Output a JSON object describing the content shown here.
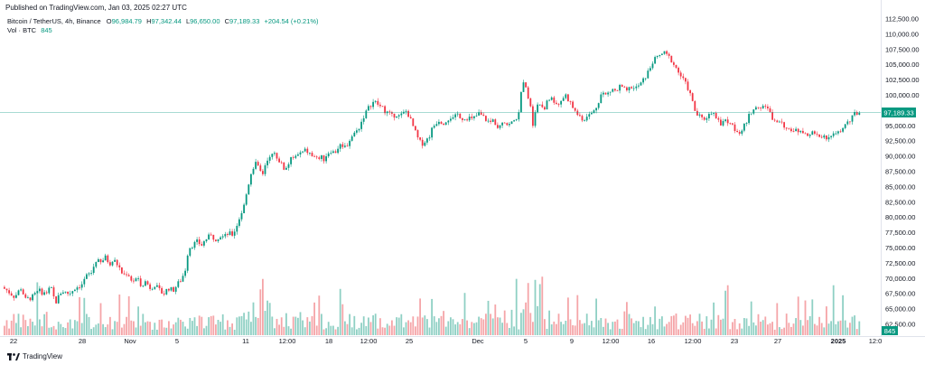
{
  "header": {
    "published": "Published on TradingView.com, Jan 03, 2025 02:27 UTC"
  },
  "legend": {
    "symbol": "Bitcoin / TetherUS, 4h, Binance",
    "o_label": "O",
    "o_value": "96,984.79",
    "h_label": "H",
    "h_value": "97,342.44",
    "l_label": "L",
    "l_value": "96,650.00",
    "c_label": "C",
    "c_value": "97,189.33",
    "change": "+204.54 (+0.21%)",
    "vol_label": "Vol · BTC",
    "vol_value": "845"
  },
  "footer": {
    "brand": "TradingView"
  },
  "colors": {
    "up": "#089981",
    "down": "#f23645",
    "up_vol": "#8fd0c4",
    "down_vol": "#f5a5a8",
    "price_line": "#089981"
  },
  "chart_data": {
    "type": "candlestick",
    "title": "Bitcoin / TetherUS, 4h, Binance",
    "price_axis": {
      "range": [
        62500,
        112500
      ],
      "ticks": [
        112500,
        110000,
        107500,
        105000,
        102500,
        100000,
        95000,
        92500,
        90000,
        87500,
        85000,
        82500,
        80000,
        77500,
        75000,
        72500,
        70000,
        67500,
        65000,
        62500
      ],
      "tick_labels": [
        "112,500.00",
        "110,000.00",
        "107,500.00",
        "105,000.00",
        "102,500.00",
        "100,000.00",
        "95,000.00",
        "92,500.00",
        "90,000.00",
        "87,500.00",
        "85,000.00",
        "82,500.00",
        "80,000.00",
        "77,500.00",
        "75,000.00",
        "72,500.00",
        "70,000.00",
        "67,500.00",
        "65,000.00",
        "62,500.00"
      ],
      "last_price": 97189.33,
      "last_price_label": "97,189.33",
      "volume_label": "845"
    },
    "time_axis": {
      "labels": [
        "22",
        "28",
        "Nov",
        "5",
        "11",
        "12:00",
        "18",
        "12:00",
        "25",
        "Dec",
        "5",
        "9",
        "12:00",
        "16",
        "12:00",
        "23",
        "27",
        "2025",
        "12:0"
      ]
    },
    "price_path": [
      [
        0,
        69000
      ],
      [
        10,
        68000
      ],
      [
        18,
        67000
      ],
      [
        25,
        68500
      ],
      [
        30,
        66500
      ],
      [
        38,
        67000
      ],
      [
        45,
        68000
      ],
      [
        52,
        67500
      ],
      [
        58,
        68500
      ],
      [
        63,
        66000
      ],
      [
        70,
        68000
      ],
      [
        78,
        67500
      ],
      [
        85,
        68500
      ],
      [
        92,
        69000
      ],
      [
        98,
        70500
      ],
      [
        103,
        71000
      ],
      [
        108,
        73000
      ],
      [
        113,
        72500
      ],
      [
        118,
        73500
      ],
      [
        123,
        72500
      ],
      [
        128,
        73000
      ],
      [
        133,
        72000
      ],
      [
        138,
        70500
      ],
      [
        143,
        71000
      ],
      [
        148,
        69500
      ],
      [
        153,
        70000
      ],
      [
        158,
        69000
      ],
      [
        163,
        69500
      ],
      [
        168,
        68500
      ],
      [
        173,
        69000
      ],
      [
        178,
        68000
      ],
      [
        183,
        67500
      ],
      [
        188,
        68500
      ],
      [
        193,
        68000
      ],
      [
        198,
        69000
      ],
      [
        203,
        70000
      ],
      [
        208,
        72000
      ],
      [
        210,
        75000
      ],
      [
        215,
        75500
      ],
      [
        220,
        76000
      ],
      [
        225,
        75500
      ],
      [
        230,
        76500
      ],
      [
        235,
        77000
      ],
      [
        240,
        76500
      ],
      [
        245,
        77000
      ],
      [
        250,
        76800
      ],
      [
        255,
        77500
      ],
      [
        258,
        77000
      ],
      [
        262,
        78000
      ],
      [
        267,
        80000
      ],
      [
        272,
        82000
      ],
      [
        276,
        85000
      ],
      [
        280,
        87500
      ],
      [
        284,
        89000
      ],
      [
        288,
        88000
      ],
      [
        292,
        87000
      ],
      [
        296,
        88500
      ],
      [
        300,
        90000
      ],
      [
        304,
        91000
      ],
      [
        308,
        90000
      ],
      [
        312,
        89000
      ],
      [
        316,
        88000
      ],
      [
        320,
        88500
      ],
      [
        324,
        89500
      ],
      [
        328,
        90500
      ],
      [
        332,
        90000
      ],
      [
        336,
        90500
      ],
      [
        340,
        91000
      ],
      [
        344,
        90500
      ],
      [
        348,
        90000
      ],
      [
        352,
        89500
      ],
      [
        356,
        90000
      ],
      [
        360,
        89500
      ],
      [
        364,
        90500
      ],
      [
        368,
        91000
      ],
      [
        372,
        90500
      ],
      [
        376,
        91500
      ],
      [
        380,
        92000
      ],
      [
        384,
        91500
      ],
      [
        388,
        92500
      ],
      [
        392,
        93500
      ],
      [
        396,
        94000
      ],
      [
        400,
        95000
      ],
      [
        404,
        96500
      ],
      [
        408,
        97500
      ],
      [
        412,
        98500
      ],
      [
        416,
        99000
      ],
      [
        420,
        98500
      ],
      [
        424,
        98000
      ],
      [
        428,
        97500
      ],
      [
        432,
        97000
      ],
      [
        436,
        96500
      ],
      [
        440,
        97000
      ],
      [
        444,
        96500
      ],
      [
        448,
        97000
      ],
      [
        452,
        97500
      ],
      [
        456,
        96000
      ],
      [
        460,
        94500
      ],
      [
        464,
        93000
      ],
      [
        468,
        92000
      ],
      [
        472,
        92500
      ],
      [
        476,
        93000
      ],
      [
        480,
        94500
      ],
      [
        484,
        95500
      ],
      [
        488,
        96000
      ],
      [
        492,
        95500
      ],
      [
        496,
        96000
      ],
      [
        500,
        96500
      ],
      [
        504,
        96000
      ],
      [
        508,
        97000
      ],
      [
        512,
        96500
      ],
      [
        516,
        96000
      ],
      [
        520,
        96500
      ],
      [
        524,
        96000
      ],
      [
        528,
        96500
      ],
      [
        532,
        97000
      ],
      [
        536,
        96500
      ],
      [
        540,
        96000
      ],
      [
        544,
        95500
      ],
      [
        548,
        96000
      ],
      [
        552,
        95000
      ],
      [
        556,
        95500
      ],
      [
        560,
        96000
      ],
      [
        564,
        95000
      ],
      [
        568,
        95500
      ],
      [
        572,
        96000
      ],
      [
        576,
        97000
      ],
      [
        580,
        102000
      ],
      [
        584,
        101000
      ],
      [
        588,
        99000
      ],
      [
        592,
        95000
      ],
      [
        596,
        98500
      ],
      [
        600,
        99000
      ],
      [
        604,
        98000
      ],
      [
        608,
        99000
      ],
      [
        612,
        99500
      ],
      [
        616,
        99000
      ],
      [
        620,
        98500
      ],
      [
        624,
        99500
      ],
      [
        628,
        100000
      ],
      [
        632,
        99000
      ],
      [
        636,
        98000
      ],
      [
        640,
        97000
      ],
      [
        644,
        96500
      ],
      [
        648,
        96000
      ],
      [
        652,
        96500
      ],
      [
        656,
        97000
      ],
      [
        660,
        97500
      ],
      [
        664,
        99000
      ],
      [
        668,
        100500
      ],
      [
        672,
        100000
      ],
      [
        676,
        100500
      ],
      [
        680,
        101000
      ],
      [
        684,
        100500
      ],
      [
        688,
        101500
      ],
      [
        692,
        101000
      ],
      [
        696,
        100500
      ],
      [
        700,
        101500
      ],
      [
        704,
        101000
      ],
      [
        708,
        101500
      ],
      [
        712,
        102000
      ],
      [
        716,
        103000
      ],
      [
        720,
        104000
      ],
      [
        724,
        105500
      ],
      [
        728,
        106000
      ],
      [
        732,
        106500
      ],
      [
        736,
        107000
      ],
      [
        740,
        106500
      ],
      [
        744,
        106000
      ],
      [
        748,
        105000
      ],
      [
        752,
        104000
      ],
      [
        756,
        103000
      ],
      [
        760,
        102000
      ],
      [
        764,
        101000
      ],
      [
        768,
        99000
      ],
      [
        772,
        97000
      ],
      [
        776,
        96500
      ],
      [
        780,
        96000
      ],
      [
        784,
        96500
      ],
      [
        788,
        97000
      ],
      [
        792,
        97500
      ],
      [
        796,
        96000
      ],
      [
        800,
        95000
      ],
      [
        804,
        96000
      ],
      [
        808,
        95500
      ],
      [
        812,
        95000
      ],
      [
        816,
        94500
      ],
      [
        820,
        94000
      ],
      [
        824,
        94500
      ],
      [
        828,
        95500
      ],
      [
        832,
        97000
      ],
      [
        836,
        98000
      ],
      [
        840,
        98500
      ],
      [
        844,
        98000
      ],
      [
        848,
        98500
      ],
      [
        852,
        97500
      ],
      [
        856,
        96500
      ],
      [
        860,
        95500
      ],
      [
        864,
        96000
      ],
      [
        868,
        95500
      ],
      [
        872,
        94500
      ],
      [
        876,
        94000
      ],
      [
        880,
        94500
      ],
      [
        884,
        94000
      ],
      [
        888,
        94500
      ],
      [
        892,
        94000
      ],
      [
        896,
        93500
      ],
      [
        900,
        94000
      ],
      [
        904,
        93500
      ],
      [
        908,
        93000
      ],
      [
        912,
        93500
      ],
      [
        916,
        93000
      ],
      [
        920,
        93500
      ],
      [
        924,
        94000
      ],
      [
        928,
        93500
      ],
      [
        932,
        94000
      ],
      [
        936,
        95000
      ],
      [
        940,
        95500
      ],
      [
        944,
        96000
      ],
      [
        948,
        97000
      ],
      [
        952,
        97189
      ]
    ]
  }
}
